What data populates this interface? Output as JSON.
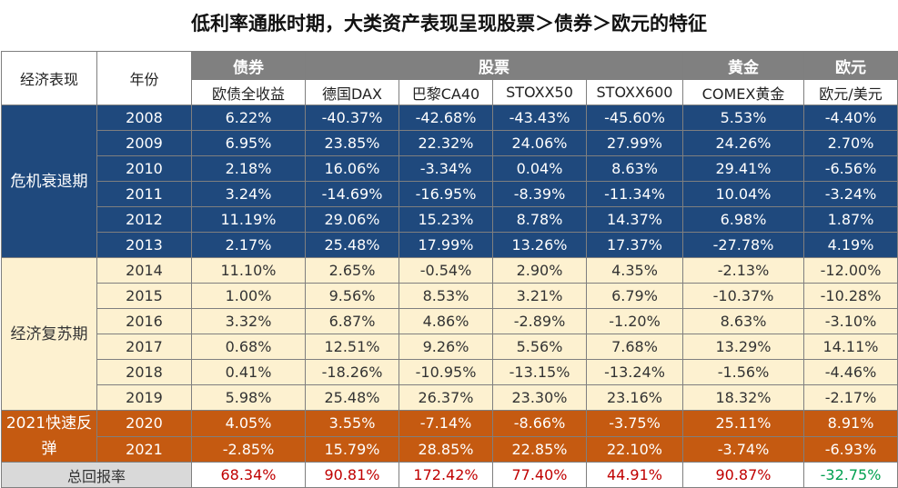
{
  "title": "低利率通胀时期，大类资产表现呈现股票＞债券＞欧元的特征",
  "headers": {
    "economy": "经济表现",
    "year": "年份",
    "groups": [
      "债券",
      "股票",
      "黄金",
      "欧元"
    ],
    "subs": [
      "欧债全收益",
      "德国DAX",
      "巴黎CA40",
      "STOXX50",
      "STOXX600",
      "COMEX黄金",
      "欧元/美元"
    ]
  },
  "phases": [
    "危机衰退期",
    "经济复苏期",
    "2021快速反弹"
  ],
  "rows": [
    [
      "2008",
      "6.22%",
      "-40.37%",
      "-42.68%",
      "-43.43%",
      "-45.60%",
      "5.53%",
      "-4.40%"
    ],
    [
      "2009",
      "6.95%",
      "23.85%",
      "22.32%",
      "24.06%",
      "27.99%",
      "24.26%",
      "2.70%"
    ],
    [
      "2010",
      "2.18%",
      "16.06%",
      "-3.34%",
      "0.04%",
      "8.63%",
      "29.41%",
      "-6.56%"
    ],
    [
      "2011",
      "3.24%",
      "-14.69%",
      "-16.95%",
      "-8.39%",
      "-11.34%",
      "10.04%",
      "-3.24%"
    ],
    [
      "2012",
      "11.19%",
      "29.06%",
      "15.23%",
      "8.78%",
      "14.37%",
      "6.98%",
      "1.87%"
    ],
    [
      "2013",
      "2.17%",
      "25.48%",
      "17.99%",
      "13.26%",
      "17.37%",
      "-27.78%",
      "4.19%"
    ],
    [
      "2014",
      "11.10%",
      "2.65%",
      "-0.54%",
      "2.90%",
      "4.35%",
      "-2.13%",
      "-12.00%"
    ],
    [
      "2015",
      "1.00%",
      "9.56%",
      "8.53%",
      "3.21%",
      "6.79%",
      "-10.37%",
      "-10.28%"
    ],
    [
      "2016",
      "3.32%",
      "6.87%",
      "4.86%",
      "-2.89%",
      "-1.20%",
      "8.63%",
      "-3.10%"
    ],
    [
      "2017",
      "0.68%",
      "12.51%",
      "9.26%",
      "5.56%",
      "7.68%",
      "13.29%",
      "14.11%"
    ],
    [
      "2018",
      "0.41%",
      "-18.26%",
      "-10.95%",
      "-13.15%",
      "-13.24%",
      "-1.56%",
      "-4.46%"
    ],
    [
      "2019",
      "5.98%",
      "25.48%",
      "26.37%",
      "23.30%",
      "23.16%",
      "18.32%",
      "-2.17%"
    ],
    [
      "2020",
      "4.05%",
      "3.55%",
      "-7.14%",
      "-8.66%",
      "-3.75%",
      "25.11%",
      "8.91%"
    ],
    [
      "2021",
      "-2.85%",
      "15.79%",
      "28.85%",
      "22.85%",
      "22.10%",
      "-3.74%",
      "-6.93%"
    ]
  ],
  "total": {
    "label": "总回报率",
    "values": [
      "68.34%",
      "90.81%",
      "172.42%",
      "77.40%",
      "44.91%",
      "90.87%",
      "-32.75%"
    ]
  },
  "colors": {
    "crisis": "#1f497d",
    "recovery": "#fdf1d0",
    "rebound": "#c55a11",
    "header": "#808080",
    "positive_total": "#c00000",
    "negative_total": "#00a050"
  }
}
